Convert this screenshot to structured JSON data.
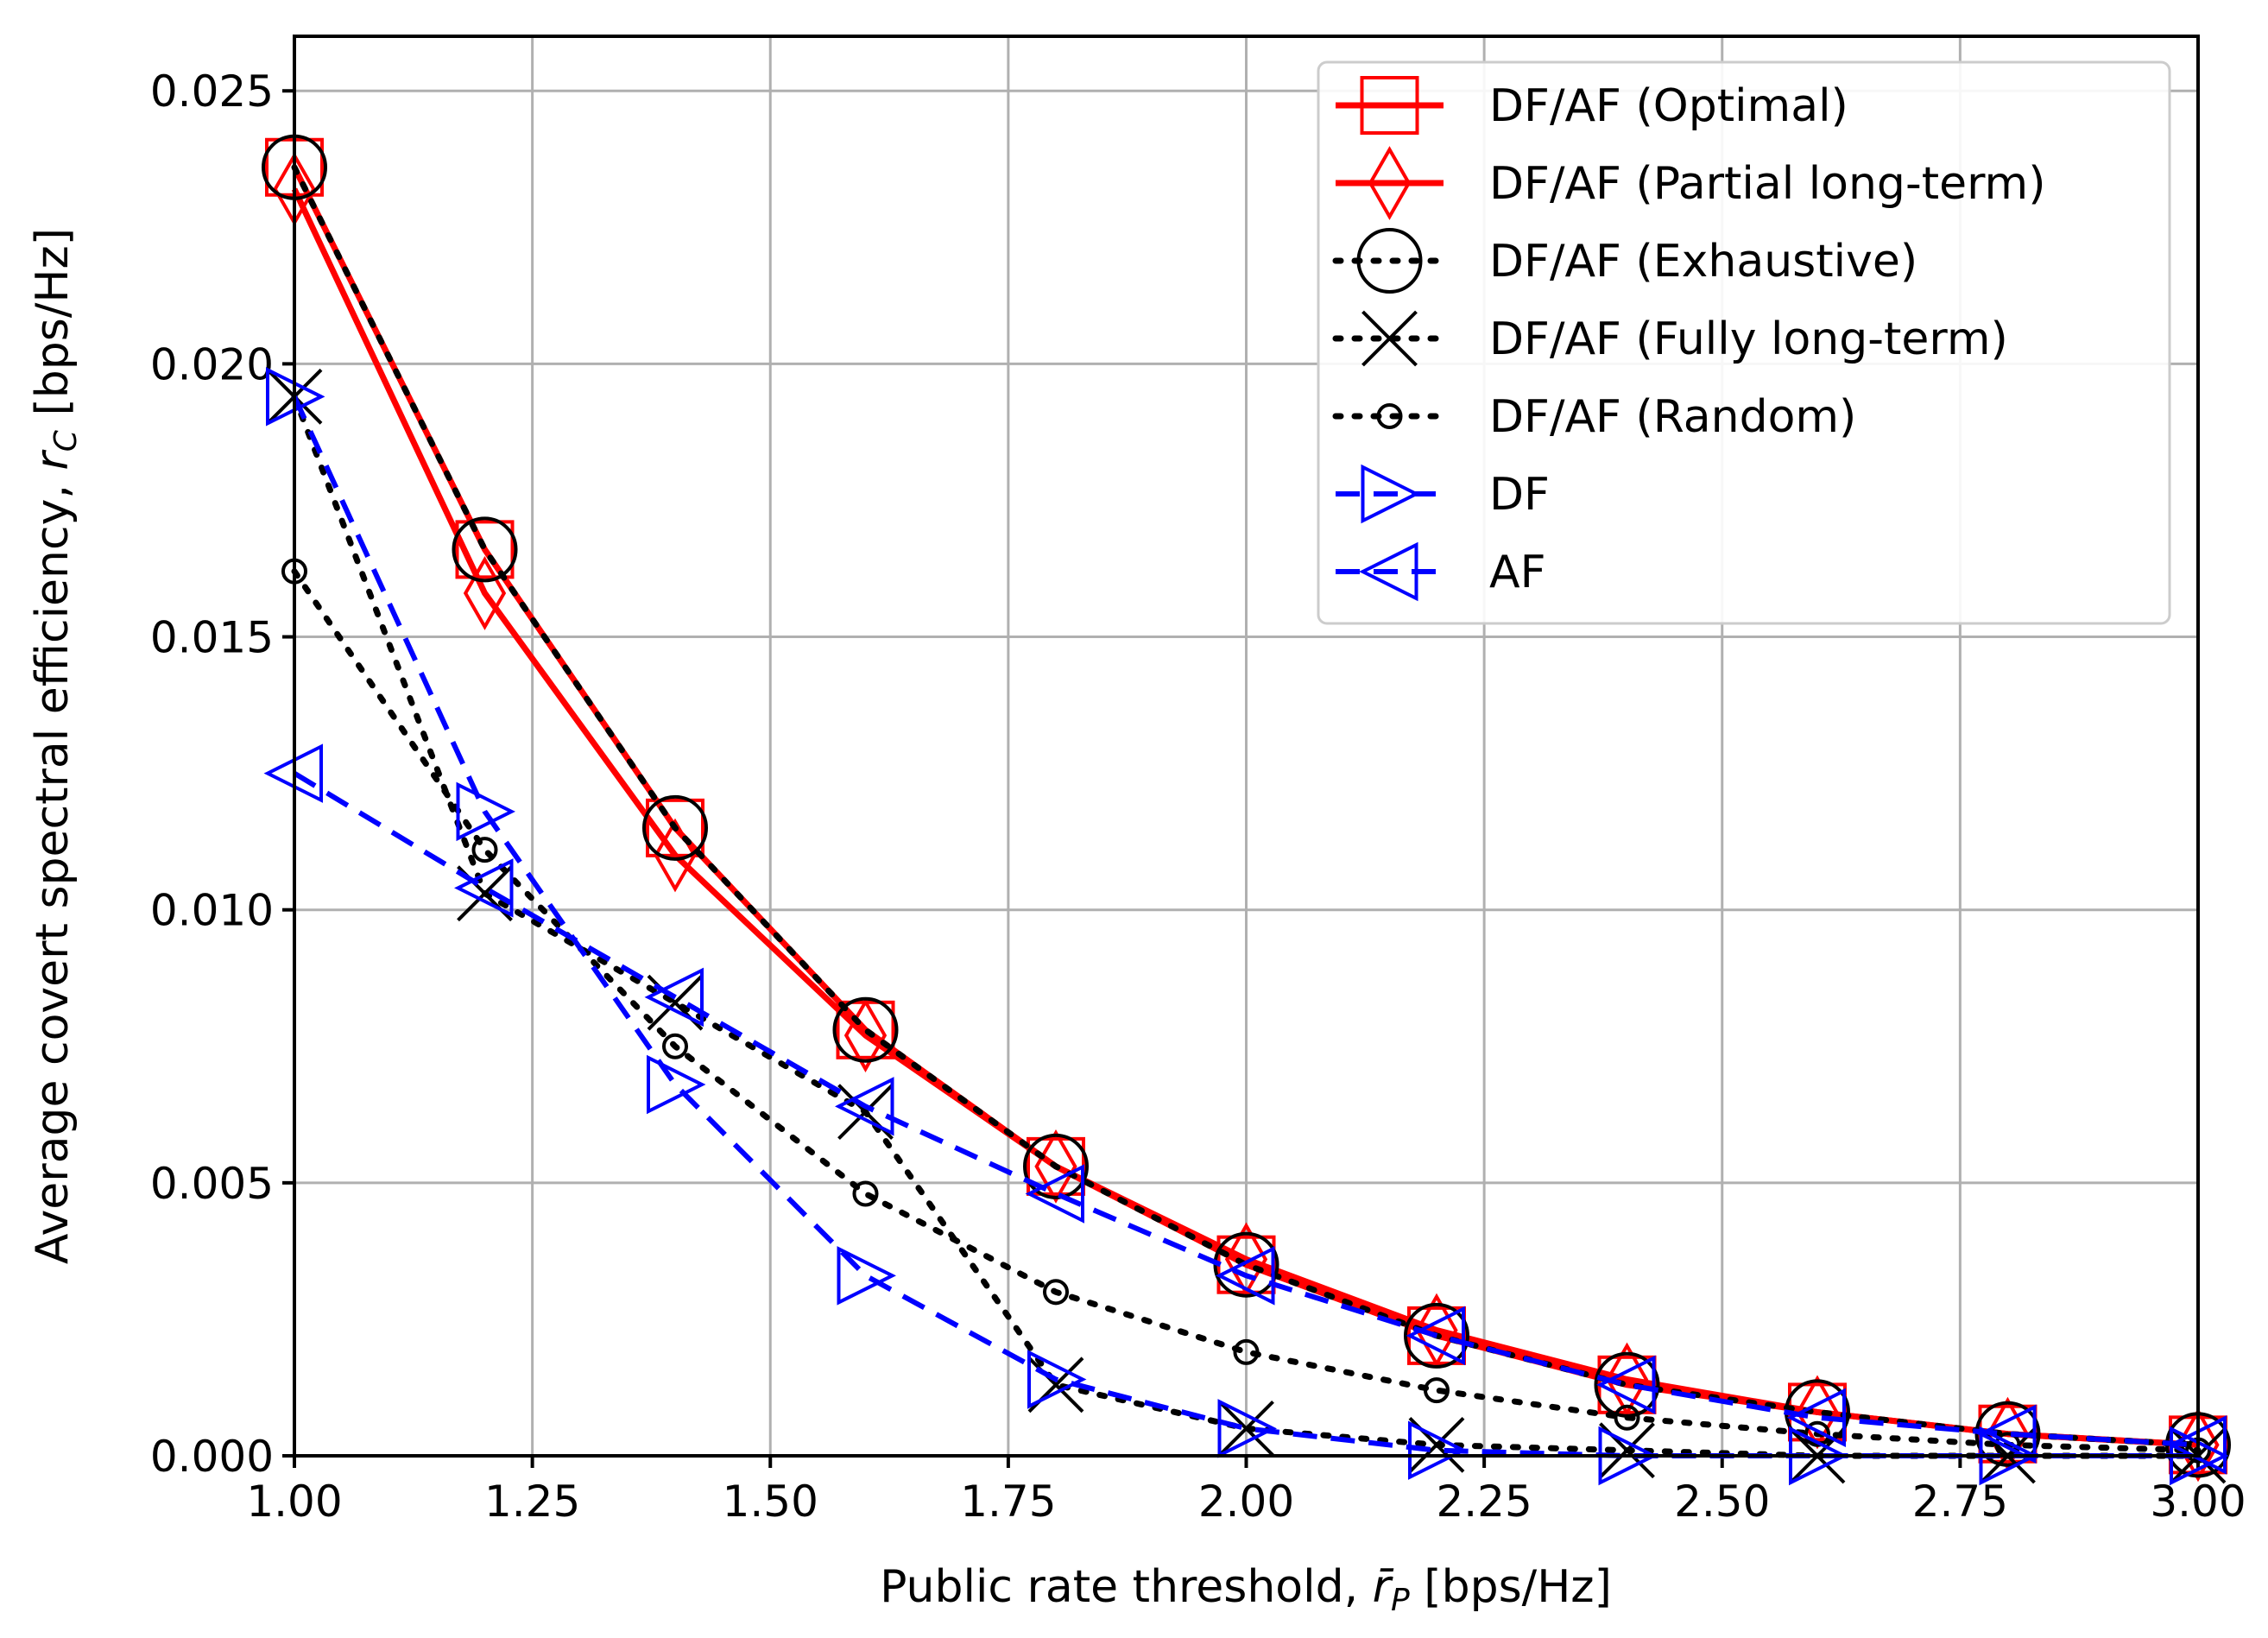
{
  "chart_data": {
    "type": "line",
    "title": "",
    "xlabel_prefix": "Public rate threshold, ",
    "xlabel_symbol": "r̄",
    "xlabel_sub": "P",
    "xlabel_suffix": " [bps/Hz]",
    "ylabel_prefix": "Average covert spectral efficiency, ",
    "ylabel_symbol": "r",
    "ylabel_sub": "C",
    "ylabel_suffix": " [bps/Hz]",
    "xlim": [
      1.0,
      3.0
    ],
    "ylim": [
      0.0,
      0.026
    ],
    "xticks": [
      1.0,
      1.25,
      1.5,
      1.75,
      2.0,
      2.25,
      2.5,
      2.75,
      3.0
    ],
    "xtick_labels": [
      "1.00",
      "1.25",
      "1.50",
      "1.75",
      "2.00",
      "2.25",
      "2.50",
      "2.75",
      "3.00"
    ],
    "yticks": [
      0.0,
      0.005,
      0.01,
      0.015,
      0.02,
      0.025
    ],
    "ytick_labels": [
      "0.000",
      "0.005",
      "0.010",
      "0.015",
      "0.020",
      "0.025"
    ],
    "grid": true,
    "legend_position": "top-right",
    "x": [
      1.0,
      1.2,
      1.4,
      1.6,
      1.8,
      2.0,
      2.2,
      2.4,
      2.6,
      2.8,
      3.0
    ],
    "series": [
      {
        "name": "DF/AF (Optimal)",
        "color": "#ff0000",
        "line": "solid",
        "marker": "square",
        "values": [
          0.0236,
          0.0166,
          0.0115,
          0.0078,
          0.0053,
          0.0035,
          0.0022,
          0.0013,
          0.0008,
          0.0004,
          0.0002
        ]
      },
      {
        "name": "DF/AF (Partial long-term)",
        "color": "#ff0000",
        "line": "solid",
        "marker": "diamond",
        "values": [
          0.0232,
          0.0158,
          0.011,
          0.0077,
          0.0053,
          0.0036,
          0.0023,
          0.0014,
          0.0008,
          0.0004,
          0.0002
        ]
      },
      {
        "name": "DF/AF (Exhaustive)",
        "color": "#000000",
        "line": "dotted",
        "marker": "circle",
        "values": [
          0.0236,
          0.0166,
          0.0115,
          0.0078,
          0.0053,
          0.0035,
          0.0022,
          0.0013,
          0.0008,
          0.0004,
          0.0002
        ]
      },
      {
        "name": "DF/AF (Fully long-term)",
        "color": "#000000",
        "line": "dotted",
        "marker": "x",
        "values": [
          0.0194,
          0.0103,
          0.0083,
          0.0063,
          0.0013,
          0.0005,
          0.0002,
          0.0001,
          0.0,
          0.0,
          0.0
        ]
      },
      {
        "name": "DF/AF (Random)",
        "color": "#000000",
        "line": "dotted",
        "marker": "small-circle",
        "values": [
          0.0162,
          0.0111,
          0.0075,
          0.0048,
          0.003,
          0.0019,
          0.0012,
          0.0007,
          0.0004,
          0.0002,
          0.0001
        ]
      },
      {
        "name": "DF",
        "color": "#0000ff",
        "line": "dashed",
        "marker": "triangle-right",
        "values": [
          0.0194,
          0.0118,
          0.0068,
          0.0033,
          0.0014,
          0.0005,
          0.0001,
          0.0,
          0.0,
          0.0,
          0.0
        ]
      },
      {
        "name": "AF",
        "color": "#0000ff",
        "line": "dashed",
        "marker": "triangle-left",
        "values": [
          0.0125,
          0.0104,
          0.0084,
          0.0064,
          0.0048,
          0.0033,
          0.0022,
          0.0013,
          0.0007,
          0.0004,
          0.0002
        ]
      }
    ]
  }
}
